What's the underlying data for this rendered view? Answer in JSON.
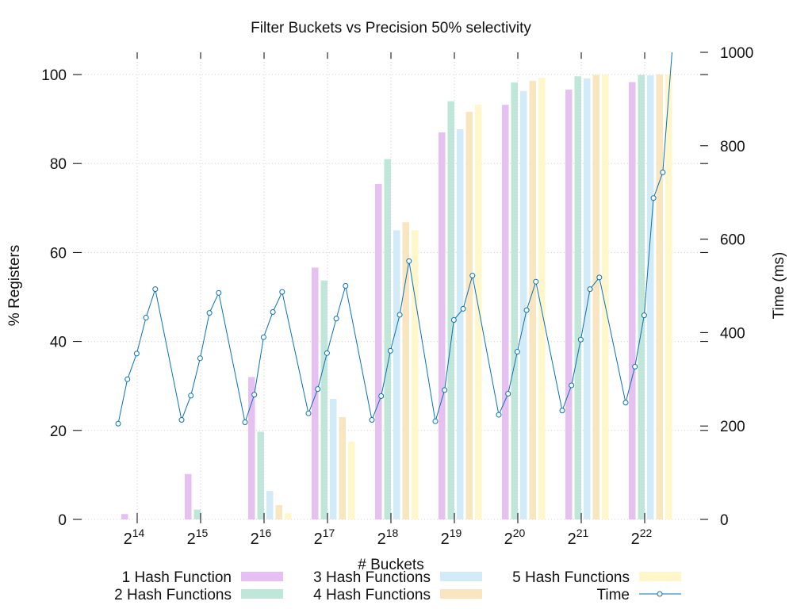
{
  "chart_data": {
    "type": "bar",
    "title": "Filter Buckets vs Precision 50% selectivity",
    "xlabel": "# Buckets",
    "ylabel": "% Registers",
    "y2label": "Time (ms)",
    "ylim": [
      0,
      105
    ],
    "y2lim": [
      0,
      1000
    ],
    "yticks": [
      "0",
      "20",
      "40",
      "60",
      "80",
      "100"
    ],
    "y2ticks": [
      "0",
      "200",
      "400",
      "600",
      "800",
      "1000"
    ],
    "grid": true,
    "legend_position": "bottom",
    "categories": [
      {
        "base": "2",
        "exp": "14"
      },
      {
        "base": "2",
        "exp": "15"
      },
      {
        "base": "2",
        "exp": "16"
      },
      {
        "base": "2",
        "exp": "17"
      },
      {
        "base": "2",
        "exp": "18"
      },
      {
        "base": "2",
        "exp": "19"
      },
      {
        "base": "2",
        "exp": "20"
      },
      {
        "base": "2",
        "exp": "21"
      },
      {
        "base": "2",
        "exp": "22"
      }
    ],
    "series": [
      {
        "name": "1 Hash Function",
        "color": "#e6c0f2",
        "values": [
          1.2,
          10.2,
          32.0,
          56.6,
          75.4,
          87.0,
          93.2,
          96.6,
          98.3
        ]
      },
      {
        "name": "2 Hash Functions",
        "color": "#c0e6d9",
        "values": [
          0,
          2.2,
          19.7,
          53.7,
          81.0,
          94.0,
          98.2,
          99.6,
          99.9
        ]
      },
      {
        "name": "3 Hash Functions",
        "color": "#d2ebf7",
        "values": [
          0,
          0,
          6.4,
          27.1,
          65.0,
          87.7,
          96.3,
          99.1,
          99.8
        ]
      },
      {
        "name": "4 Hash Functions",
        "color": "#f9e6c0",
        "values": [
          0,
          0,
          3.2,
          23.0,
          66.8,
          91.6,
          98.6,
          99.9,
          100
        ]
      },
      {
        "name": "5 Hash Functions",
        "color": "#fff6cb",
        "values": [
          0,
          0,
          1.4,
          17.5,
          65.0,
          93.2,
          99.3,
          100,
          100
        ]
      }
    ],
    "time_series": {
      "name": "Time",
      "color": "#0a72b5",
      "values": [
        [
          205,
          300,
          355,
          432,
          493
        ],
        [
          213,
          265,
          345,
          442,
          485
        ],
        [
          208,
          267,
          390,
          444,
          487
        ],
        [
          227,
          279,
          356,
          430,
          500
        ],
        [
          213,
          264,
          361,
          438,
          553
        ],
        [
          210,
          277,
          427,
          451,
          522
        ],
        [
          224,
          269,
          359,
          448,
          509
        ],
        [
          233,
          287,
          385,
          493,
          518
        ],
        [
          250,
          327,
          437,
          688,
          743,
          1000
        ]
      ]
    }
  }
}
